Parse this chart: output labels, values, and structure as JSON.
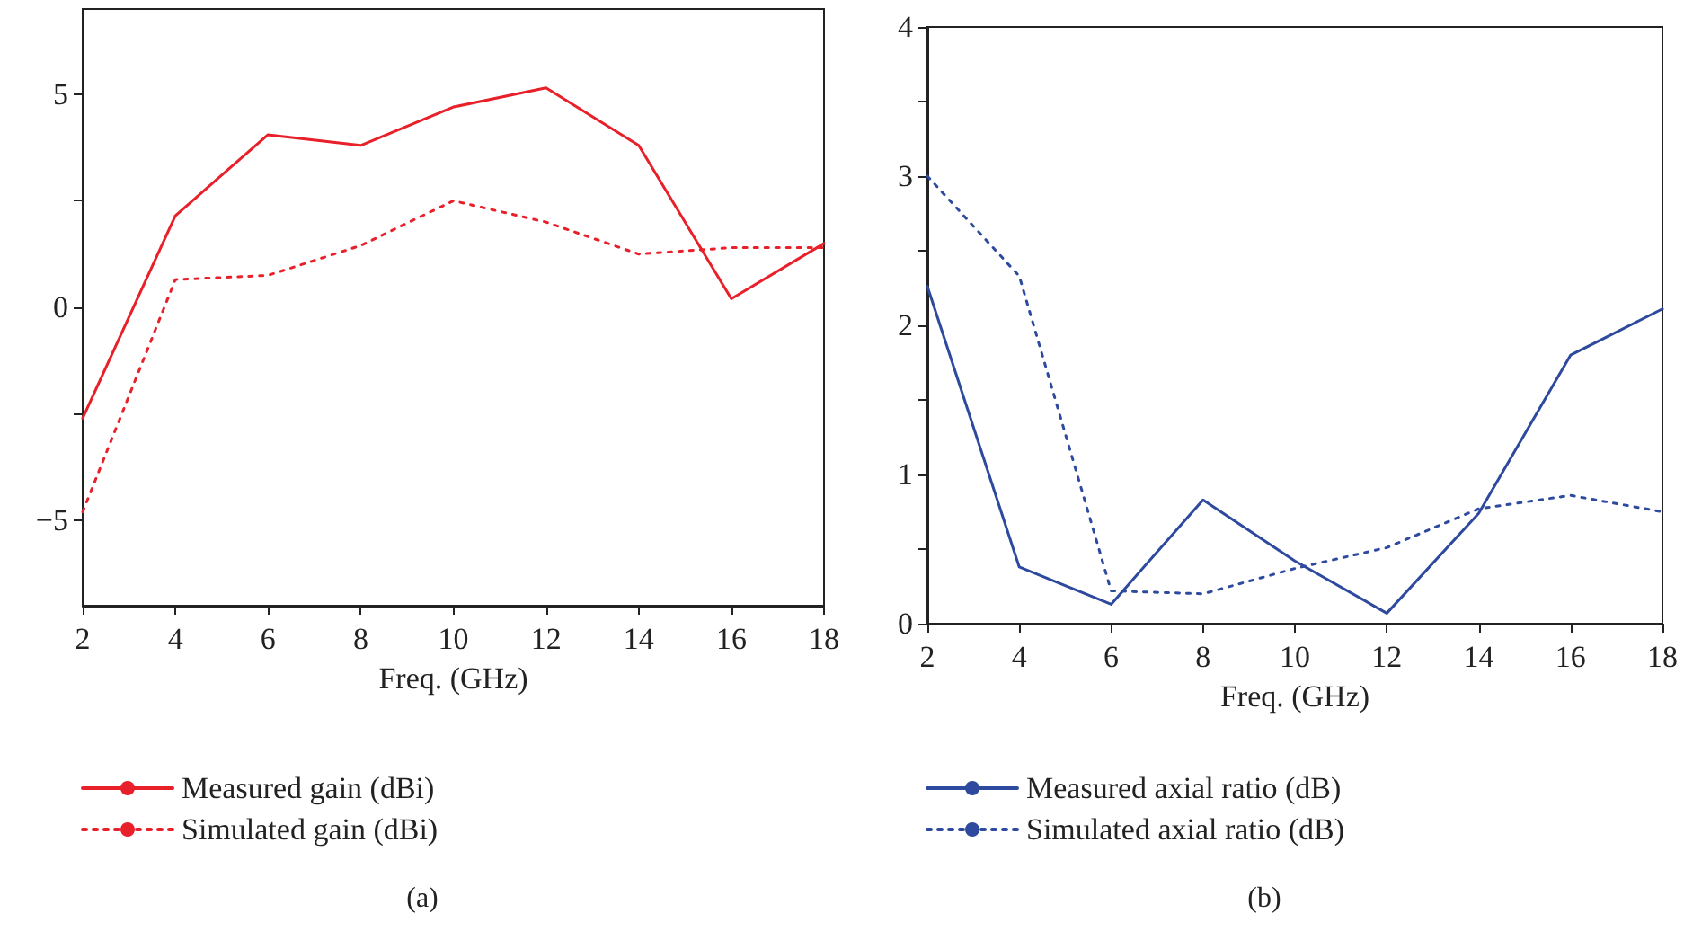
{
  "chart_data": [
    {
      "type": "line",
      "xlabel": "Freq. (GHz)",
      "annotations": [
        "(a)"
      ],
      "x": [
        2,
        4,
        6,
        8,
        10,
        12,
        14,
        16,
        18
      ],
      "series": [
        {
          "name": "Measured gain (dBi)",
          "color": "#e8202a",
          "line_style": "solid",
          "values": [
            -2.6,
            2.15,
            4.05,
            3.8,
            4.7,
            5.15,
            3.8,
            0.2,
            1.5
          ]
        },
        {
          "name": "Simulated gain (dBi)",
          "color": "#e8202a",
          "line_style": "dotted",
          "values": [
            -4.8,
            0.65,
            0.75,
            1.45,
            2.5,
            2.0,
            1.25,
            1.4,
            1.4
          ]
        }
      ],
      "xlim": [
        2,
        18
      ],
      "xticks": [
        2,
        4,
        6,
        8,
        10,
        12,
        14,
        16,
        18
      ],
      "ylim": [
        -7,
        7
      ],
      "yticks": [
        -5,
        {
          "value": -2.5,
          "label": null
        },
        0,
        {
          "value": 2.5,
          "label": null
        },
        5
      ],
      "grid": false,
      "legend": "bottom",
      "marker": "none"
    },
    {
      "type": "line",
      "xlabel": "Freq. (GHz)",
      "annotations": [
        "(b)"
      ],
      "x": [
        2,
        4,
        6,
        8,
        10,
        12,
        14,
        16,
        18
      ],
      "series": [
        {
          "name": "Measured axial ratio (dB)",
          "color": "#2e4a9e",
          "line_style": "solid",
          "values": [
            2.26,
            0.38,
            0.13,
            0.83,
            0.42,
            0.07,
            0.74,
            1.8,
            2.11
          ]
        },
        {
          "name": "Simulated axial ratio (dB)",
          "color": "#2e4a9e",
          "line_style": "dotted",
          "values": [
            3.0,
            2.33,
            0.22,
            0.2,
            0.37,
            0.51,
            0.77,
            0.86,
            0.75
          ]
        }
      ],
      "xlim": [
        2,
        18
      ],
      "xticks": [
        2,
        4,
        6,
        8,
        10,
        12,
        14,
        16,
        18
      ],
      "ylim": [
        0,
        4
      ],
      "yticks": [
        0,
        {
          "value": 0.5,
          "label": null
        },
        1,
        {
          "value": 1.5,
          "label": null
        },
        2,
        {
          "value": 2.5,
          "label": null
        },
        3,
        {
          "value": 3.5,
          "label": null
        },
        4
      ],
      "grid": false,
      "legend": "bottom",
      "marker": "none"
    }
  ]
}
